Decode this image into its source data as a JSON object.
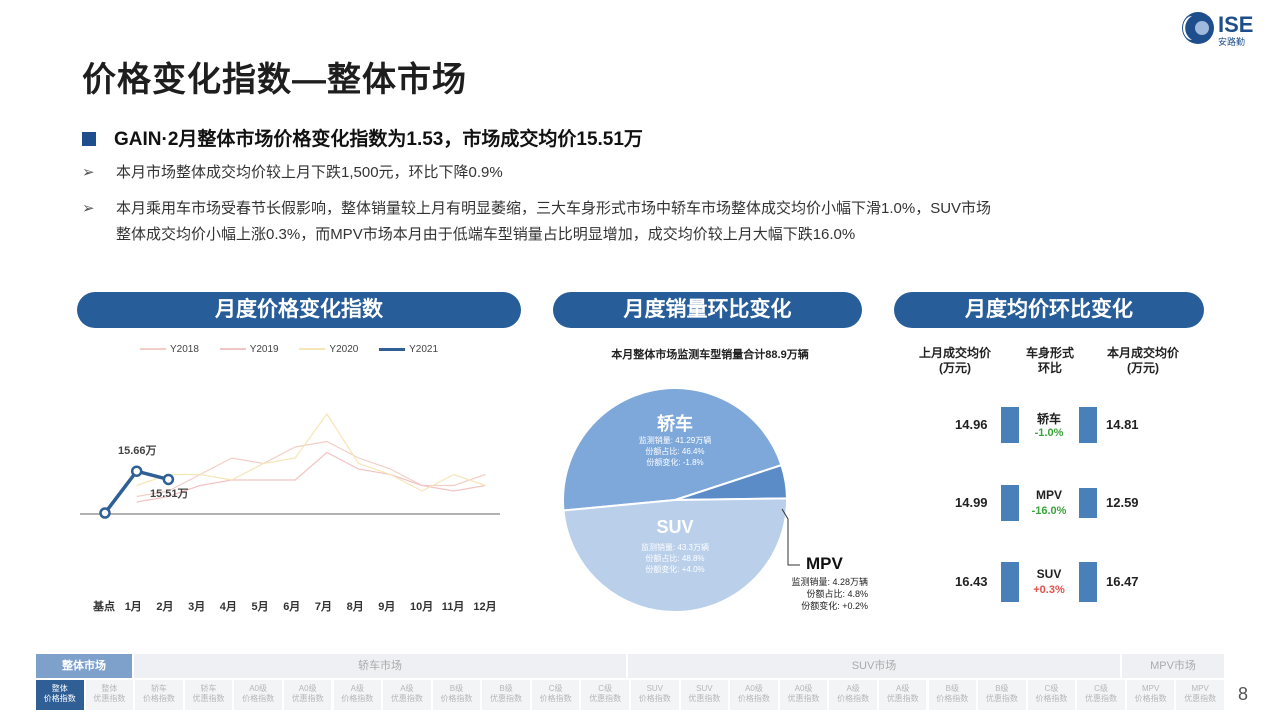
{
  "title": "价格变化指数—整体市场",
  "logo": {
    "text": "ISE",
    "sub": "安路勤"
  },
  "headline": "GAIN·2月整体市场价格变化指数为1.53，市场成交均价15.51万",
  "bullets": [
    {
      "arrow": "➢",
      "lines": [
        "本月市场整体成交均价较上月下跌1,500元，环比下降0.9%"
      ]
    },
    {
      "arrow": "➢",
      "lines": [
        "本月乘用车市场受春节长假影响，整体销量较上月有明显萎缩，三大车身形式市场中轿车市场整体成交均价小幅下滑1.0%，SUV市场",
        "整体成交均价小幅上涨0.3%，而MPV市场本月由于低端车型销量占比明显增加，成交均价较上月大幅下跌16.0%"
      ]
    }
  ],
  "sections": {
    "price_index": "月度价格变化指数",
    "sales": "月度销量环比变化",
    "avg_price": "月度均价环比变化"
  },
  "chart_data": [
    {
      "type": "line",
      "title": "月度价格变化指数",
      "categories": [
        "基点",
        "1月",
        "2月",
        "3月",
        "4月",
        "5月",
        "6月",
        "7月",
        "8月",
        "9月",
        "10月",
        "11月",
        "12月"
      ],
      "legend": "top",
      "ylim": [
        13.5,
        17.5
      ],
      "series": [
        {
          "name": "Y2018",
          "color": "#f2cfc6",
          "values": [
            null,
            15.2,
            15.3,
            15.6,
            15.9,
            15.8,
            16.1,
            16.2,
            15.9,
            15.7,
            15.4,
            15.4,
            15.6
          ]
        },
        {
          "name": "Y2019",
          "color": "#f2c4c4",
          "values": [
            null,
            15.1,
            15.2,
            15.4,
            15.5,
            15.5,
            15.5,
            16.0,
            15.7,
            15.6,
            15.4,
            15.3,
            15.4
          ]
        },
        {
          "name": "Y2020",
          "color": "#f5e6b8",
          "values": [
            null,
            15.4,
            15.6,
            15.6,
            15.5,
            15.8,
            15.9,
            16.7,
            15.8,
            15.6,
            15.3,
            15.6,
            15.4
          ]
        },
        {
          "name": "Y2021",
          "color": "#2f5f95",
          "values": [
            14.9,
            15.66,
            15.51,
            null,
            null,
            null,
            null,
            null,
            null,
            null,
            null,
            null,
            null
          ]
        }
      ],
      "annotations": [
        {
          "text": "15.66万"
        },
        {
          "text": "15.51万"
        }
      ]
    },
    {
      "type": "pie",
      "title": "本月整体市场监测车型销量合计88.9万辆",
      "slices": [
        {
          "name": "轿车",
          "value": 41.29,
          "share": "份额占比: 46.4%",
          "sales": "监测销量: 41.29万辆",
          "change": "份额变化: -1.8%",
          "color": "#7ea7da"
        },
        {
          "name": "SUV",
          "value": 43.3,
          "share": "份额占比: 48.8%",
          "sales": "监测销量: 43.3万辆",
          "change": "份额变化: +4.0%",
          "color": "#b9cfea"
        },
        {
          "name": "MPV",
          "value": 4.28,
          "share": "份额占比: 4.8%",
          "sales": "监测销量: 4.28万辆",
          "change": "份额变化: +0.2%",
          "color": "#5b8cc8"
        }
      ]
    },
    {
      "type": "bar",
      "title": "月度均价环比变化",
      "headers": {
        "prev": "上月成交均价\n(万元)",
        "type": "车身形式\n环比",
        "cur": "本月成交均价\n(万元)"
      },
      "rows": [
        {
          "segment": "轿车",
          "prev": 14.96,
          "cur": 14.81,
          "change": "-1.0%",
          "color": "#3aa33a"
        },
        {
          "segment": "MPV",
          "prev": 14.99,
          "cur": 12.59,
          "change": "-16.0%",
          "color": "#3aa33a"
        },
        {
          "segment": "SUV",
          "prev": 16.43,
          "cur": 16.47,
          "change": "+0.3%",
          "color": "#e0504a"
        }
      ]
    }
  ],
  "nav": {
    "groups": [
      {
        "label": "整体市场",
        "active": true
      },
      {
        "label": "轿车市场"
      },
      {
        "label": "SUV市场"
      },
      {
        "label": "MPV市场"
      }
    ],
    "items": [
      "整体\n价格指数",
      "整体\n优惠指数",
      "轿车\n价格指数",
      "轿车\n优惠指数",
      "A0级\n价格指数",
      "A0级\n优惠指数",
      "A级\n价格指数",
      "A级\n优惠指数",
      "B级\n价格指数",
      "B级\n优惠指数",
      "C级\n价格指数",
      "C级\n优惠指数",
      "SUV\n价格指数",
      "SUV\n优惠指数",
      "A0级\n价格指数",
      "A0级\n优惠指数",
      "A级\n价格指数",
      "A级\n优惠指数",
      "B级\n价格指数",
      "B级\n优惠指数",
      "C级\n价格指数",
      "C级\n优惠指数",
      "MPV\n价格指数",
      "MPV\n优惠指数"
    ]
  },
  "page_number": "8"
}
